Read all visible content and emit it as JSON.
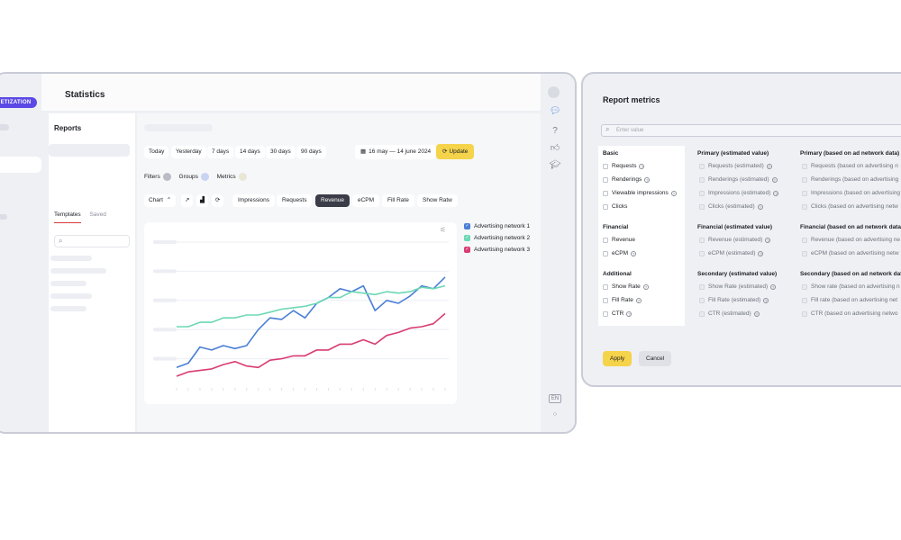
{
  "left_window": {
    "brand_badge": "NETIZATION",
    "page_title": "Statistics",
    "reports": {
      "title": "Reports",
      "tabs": [
        "Templates",
        "Saved"
      ]
    },
    "period_buttons": [
      "Today",
      "Yesterday",
      "7 days",
      "14 days",
      "30 days",
      "90 days"
    ],
    "date_range": "16 may — 14 june 2024",
    "update_label": "Update",
    "filters": [
      "Filters",
      "Groups",
      "Metrics"
    ],
    "chart_label": "Chart",
    "metric_tabs": [
      "Impressions",
      "Requests",
      "Revenue",
      "eCPM",
      "Fill Rate",
      "Show Ratw"
    ],
    "active_metric": "Revenue",
    "language": "EN"
  },
  "chart_data": {
    "type": "line",
    "title": "",
    "xlabel": "",
    "ylabel": "",
    "x": [
      1,
      2,
      3,
      4,
      5,
      6,
      7,
      8,
      9,
      10,
      11,
      12,
      13,
      14,
      15,
      16,
      17,
      18,
      19,
      20,
      21,
      22,
      23,
      24
    ],
    "ylim": [
      0,
      100
    ],
    "grid": true,
    "legend_placement": "right",
    "series": [
      {
        "name": "Advertising network 1",
        "color": "#4a7fd6",
        "values": [
          14,
          17,
          28,
          26,
          29,
          27,
          29,
          40,
          48,
          47,
          53,
          48,
          58,
          62,
          68,
          66,
          70,
          53,
          60,
          58,
          63,
          70,
          68,
          76
        ]
      },
      {
        "name": "Advertising network 2",
        "color": "#6dd8b4",
        "values": [
          42,
          42,
          45,
          45,
          48,
          48,
          50,
          50,
          52,
          54,
          55,
          56,
          58,
          62,
          62,
          66,
          65,
          64,
          66,
          65,
          66,
          69,
          68,
          70
        ]
      },
      {
        "name": "Advertising network 3",
        "color": "#d93c73",
        "values": [
          8,
          11,
          12,
          13,
          16,
          18,
          15,
          14,
          19,
          20,
          22,
          22,
          26,
          26,
          30,
          30,
          33,
          30,
          36,
          38,
          41,
          42,
          44,
          51
        ]
      }
    ]
  },
  "right_window": {
    "title": "Report metrics",
    "search_placeholder": "Enter value",
    "col1": {
      "groups": [
        {
          "title": "Basic",
          "items": [
            "Requests",
            "Renderings",
            "Viewable impressions",
            "Clicks"
          ]
        },
        {
          "title": "Financial",
          "items": [
            "Revenue",
            "eCPM"
          ]
        },
        {
          "title": "Additional",
          "items": [
            "Show Rate",
            "Fill Rate",
            "CTR"
          ]
        }
      ]
    },
    "col2": {
      "groups": [
        {
          "title": "Primary (estimated value)",
          "items": [
            "Requests (estimated)",
            "Renderings (estimated)",
            "Impressions (estimated)",
            "Clicks (estimated)"
          ]
        },
        {
          "title": "Financial (estimated value)",
          "items": [
            "Revenue (estimated)",
            "eCPM (estimated)"
          ]
        },
        {
          "title": "Secondary (estimated value)",
          "items": [
            "Show Rate (estimated)",
            "Fill Rate (estimated)",
            "CTR (estimated)"
          ]
        }
      ]
    },
    "col3": {
      "groups": [
        {
          "title": "Primary (based on ad network data)",
          "items": [
            "Requests (based on advertising n",
            "Renderings (based on advertising",
            "Impressions (based on advertising",
            "Clicks (based on advertising netw"
          ]
        },
        {
          "title": "Financial (based on ad network data)",
          "items": [
            "Revenue (based on advertising ne",
            "eCPM (based on advertising netw"
          ]
        },
        {
          "title": "Secondary (based on ad network data)",
          "items": [
            "Show rate (based on advertising n",
            "Fill rate (based on advertising net",
            "CTR (based on advertising netwo"
          ]
        }
      ]
    },
    "apply_label": "Apply",
    "cancel_label": "Cancel"
  }
}
